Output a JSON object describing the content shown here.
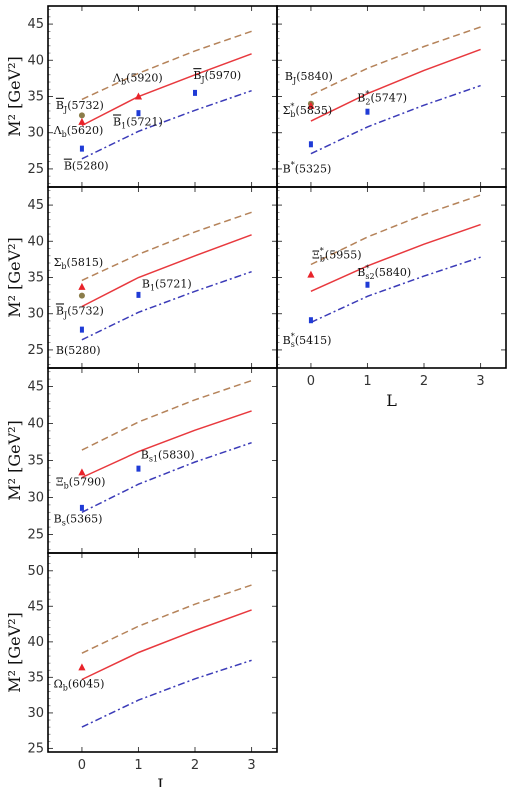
{
  "chart_data": [
    {
      "type": "line",
      "panel": "top-left",
      "xlabel": "",
      "ylabel": "M² [GeV²]",
      "x": [
        0,
        1,
        2,
        3
      ],
      "ylim": [
        22.5,
        47.5
      ],
      "yticks": [
        25,
        30,
        35,
        40,
        45
      ],
      "series": [
        {
          "values": [
            34.6,
            38.2,
            41.3,
            44.0
          ],
          "color": "#b5835a",
          "dash": "dashed"
        },
        {
          "values": [
            31.0,
            35.0,
            38.0,
            40.9
          ],
          "color": "#e8393e",
          "dash": "solid"
        },
        {
          "values": [
            26.4,
            30.2,
            33.1,
            35.8
          ],
          "color": "#3b3bb8",
          "dash": "dashdot"
        }
      ],
      "points": [
        {
          "x": 0,
          "y": 32.4,
          "color": "#8b7d4a",
          "marker": "circle"
        },
        {
          "x": 0,
          "y": 31.5,
          "color": "#e8232a",
          "marker": "triangle"
        },
        {
          "x": 0,
          "y": 27.8,
          "color": "#1f3bd6",
          "marker": "square"
        },
        {
          "x": 1,
          "y": 35.0,
          "color": "#e8232a",
          "marker": "triangle"
        },
        {
          "x": 1,
          "y": 32.7,
          "color": "#1f3bd6",
          "marker": "square"
        },
        {
          "x": 2,
          "y": 35.5,
          "color": "#1f3bd6",
          "marker": "square"
        }
      ],
      "annotations": [
        {
          "main": "B",
          "bar": true,
          "sub": "J",
          "rest": "(5732)",
          "x": -0.46,
          "y": 33.3
        },
        {
          "main": "Λ",
          "sub": "b",
          "rest": "(5620)",
          "x": -0.5,
          "y": 29.8
        },
        {
          "main": "B",
          "bar": true,
          "rest": "(5280)",
          "x": -0.32,
          "y": 24.9
        },
        {
          "main": "Λ",
          "sub": "b",
          "rest": "(5920)",
          "x": 0.55,
          "y": 37.1
        },
        {
          "main": "B",
          "bar": true,
          "sub": "1",
          "rest": "(5721)",
          "x": 0.55,
          "y": 31.0
        },
        {
          "main": "B",
          "bar": true,
          "sub": "J",
          "rest": "(5970)",
          "x": 1.97,
          "y": 37.4
        }
      ]
    },
    {
      "type": "line",
      "panel": "top-right",
      "xlabel": "",
      "ylabel": "",
      "x": [
        0,
        1,
        2,
        3
      ],
      "ylim": [
        22.5,
        47.5
      ],
      "yticks": [
        25,
        30,
        35,
        40,
        45
      ],
      "series": [
        {
          "values": [
            35.2,
            38.9,
            41.9,
            44.6
          ],
          "color": "#b5835a",
          "dash": "dashed"
        },
        {
          "values": [
            31.6,
            35.4,
            38.6,
            41.5
          ],
          "color": "#e8393e",
          "dash": "solid"
        },
        {
          "values": [
            27.1,
            30.8,
            33.8,
            36.5
          ],
          "color": "#3b3bb8",
          "dash": "dashdot"
        }
      ],
      "points": [
        {
          "x": 0,
          "y": 34.0,
          "color": "#8b7d4a",
          "marker": "circle"
        },
        {
          "x": 0,
          "y": 33.7,
          "color": "#e8232a",
          "marker": "triangle"
        },
        {
          "x": 0,
          "y": 28.4,
          "color": "#1f3bd6",
          "marker": "square"
        },
        {
          "x": 1,
          "y": 32.9,
          "color": "#1f3bd6",
          "marker": "square"
        }
      ],
      "annotations": [
        {
          "main": "B",
          "sub": "J",
          "rest": "(5840)",
          "x": -0.46,
          "y": 37.3
        },
        {
          "main": "Σ",
          "sub": "b",
          "sup": "*",
          "rest": "(5835)",
          "x": -0.5,
          "y": 32.6
        },
        {
          "main": "B",
          "sub": "2",
          "sup": "*",
          "rest": "(5747)",
          "x": 0.82,
          "y": 34.3
        },
        {
          "main": "B",
          "sup": "*",
          "rest": "(5325)",
          "x": -0.5,
          "y": 24.5
        }
      ]
    },
    {
      "type": "line",
      "panel": "middle-left",
      "xlabel": "",
      "ylabel": "M² [GeV²]",
      "x": [
        0,
        1,
        2,
        3
      ],
      "ylim": [
        22.5,
        47.5
      ],
      "yticks": [
        25,
        30,
        35,
        40,
        45
      ],
      "series": [
        {
          "values": [
            34.6,
            38.2,
            41.3,
            44.0
          ],
          "color": "#b5835a",
          "dash": "dashed"
        },
        {
          "values": [
            31.0,
            35.0,
            38.0,
            40.9
          ],
          "color": "#e8393e",
          "dash": "solid"
        },
        {
          "values": [
            26.4,
            30.2,
            33.1,
            35.8
          ],
          "color": "#3b3bb8",
          "dash": "dashdot"
        }
      ],
      "points": [
        {
          "x": 0,
          "y": 33.7,
          "color": "#e8232a",
          "marker": "triangle"
        },
        {
          "x": 0,
          "y": 32.5,
          "color": "#8b7d4a",
          "marker": "circle"
        },
        {
          "x": 0,
          "y": 27.8,
          "color": "#1f3bd6",
          "marker": "square"
        },
        {
          "x": 1,
          "y": 32.6,
          "color": "#1f3bd6",
          "marker": "square"
        }
      ],
      "annotations": [
        {
          "main": "Σ",
          "sub": "b",
          "rest": "(5815)",
          "x": -0.5,
          "y": 36.6
        },
        {
          "main": "B",
          "bar": true,
          "sub": "J",
          "rest": "(5732)",
          "x": -0.46,
          "y": 29.9
        },
        {
          "main": "B",
          "sub": "1",
          "rest": "(5721)",
          "x": 1.06,
          "y": 33.6
        },
        {
          "main": "B(5280)",
          "x": -0.46,
          "y": 24.4
        }
      ]
    },
    {
      "type": "line",
      "panel": "middle-right",
      "xlabel": "L",
      "ylabel": "",
      "x": [
        0,
        1,
        2,
        3
      ],
      "ylim": [
        22.5,
        47.5
      ],
      "yticks": [
        25,
        30,
        35,
        40,
        45
      ],
      "xticks": [
        0,
        1,
        2,
        3
      ],
      "series": [
        {
          "values": [
            36.8,
            40.6,
            43.7,
            46.4
          ],
          "color": "#b5835a",
          "dash": "dashed"
        },
        {
          "values": [
            33.1,
            36.6,
            39.6,
            42.3
          ],
          "color": "#e8393e",
          "dash": "solid"
        },
        {
          "values": [
            28.8,
            32.4,
            35.2,
            37.8
          ],
          "color": "#3b3bb8",
          "dash": "dashdot"
        }
      ],
      "points": [
        {
          "x": 0,
          "y": 35.4,
          "color": "#e8232a",
          "marker": "triangle"
        },
        {
          "x": 0,
          "y": 29.1,
          "color": "#1f3bd6",
          "marker": "square"
        },
        {
          "x": 1,
          "y": 34.0,
          "color": "#1f3bd6",
          "marker": "square"
        }
      ],
      "annotations": [
        {
          "main": "Ξ",
          "sub": "b",
          "sup": "*",
          "rest": "(5955)",
          "x": 0.02,
          "y": 37.6
        },
        {
          "main": "B",
          "sub": "s2",
          "sup": "*",
          "rest": "(5840)",
          "x": 0.82,
          "y": 35.2
        },
        {
          "main": "B",
          "sub": "s",
          "sup": "*",
          "rest": "(5415)",
          "x": -0.5,
          "y": 25.8
        }
      ]
    },
    {
      "type": "line",
      "panel": "lower-left",
      "xlabel": "",
      "ylabel": "M² [GeV²]",
      "x": [
        0,
        1,
        2,
        3
      ],
      "ylim": [
        22.5,
        47.5
      ],
      "yticks": [
        25,
        30,
        35,
        40,
        45
      ],
      "series": [
        {
          "values": [
            36.4,
            40.2,
            43.2,
            45.8
          ],
          "color": "#b5835a",
          "dash": "dashed"
        },
        {
          "values": [
            32.7,
            36.2,
            39.1,
            41.7
          ],
          "color": "#e8393e",
          "dash": "solid"
        },
        {
          "values": [
            28.0,
            31.8,
            34.8,
            37.4
          ],
          "color": "#3b3bb8",
          "dash": "dashdot"
        }
      ],
      "points": [
        {
          "x": 0,
          "y": 33.4,
          "color": "#e8232a",
          "marker": "triangle"
        },
        {
          "x": 0,
          "y": 28.6,
          "color": "#1f3bd6",
          "marker": "square"
        },
        {
          "x": 1,
          "y": 33.9,
          "color": "#1f3bd6",
          "marker": "square"
        }
      ],
      "annotations": [
        {
          "main": "Ξ",
          "sub": "b",
          "rest": "(5790)",
          "x": -0.46,
          "y": 31.6
        },
        {
          "main": "B",
          "sub": "s1",
          "rest": "(5830)",
          "x": 1.04,
          "y": 35.3
        },
        {
          "main": "B",
          "sub": "s",
          "rest": "(5365)",
          "x": -0.5,
          "y": 26.6
        }
      ]
    },
    {
      "type": "line",
      "panel": "bottom-left",
      "xlabel": "L",
      "ylabel": "M² [GeV²]",
      "x": [
        0,
        1,
        2,
        3
      ],
      "ylim": [
        24.5,
        52.5
      ],
      "yticks": [
        25,
        30,
        35,
        40,
        45,
        50
      ],
      "xticks": [
        0,
        1,
        2,
        3
      ],
      "series": [
        {
          "values": [
            38.4,
            42.2,
            45.3,
            48.0
          ],
          "color": "#b5835a",
          "dash": "dashed"
        },
        {
          "values": [
            34.7,
            38.5,
            41.6,
            44.5
          ],
          "color": "#e8393e",
          "dash": "solid"
        },
        {
          "values": [
            28.0,
            31.8,
            34.8,
            37.4
          ],
          "color": "#3b3bb8",
          "dash": "dashdot"
        }
      ],
      "points": [
        {
          "x": 0,
          "y": 36.4,
          "color": "#e8232a",
          "marker": "triangle"
        }
      ],
      "annotations": [
        {
          "main": "Ω",
          "sub": "b",
          "rest": "(6045)",
          "x": -0.5,
          "y": 33.6
        }
      ]
    }
  ]
}
